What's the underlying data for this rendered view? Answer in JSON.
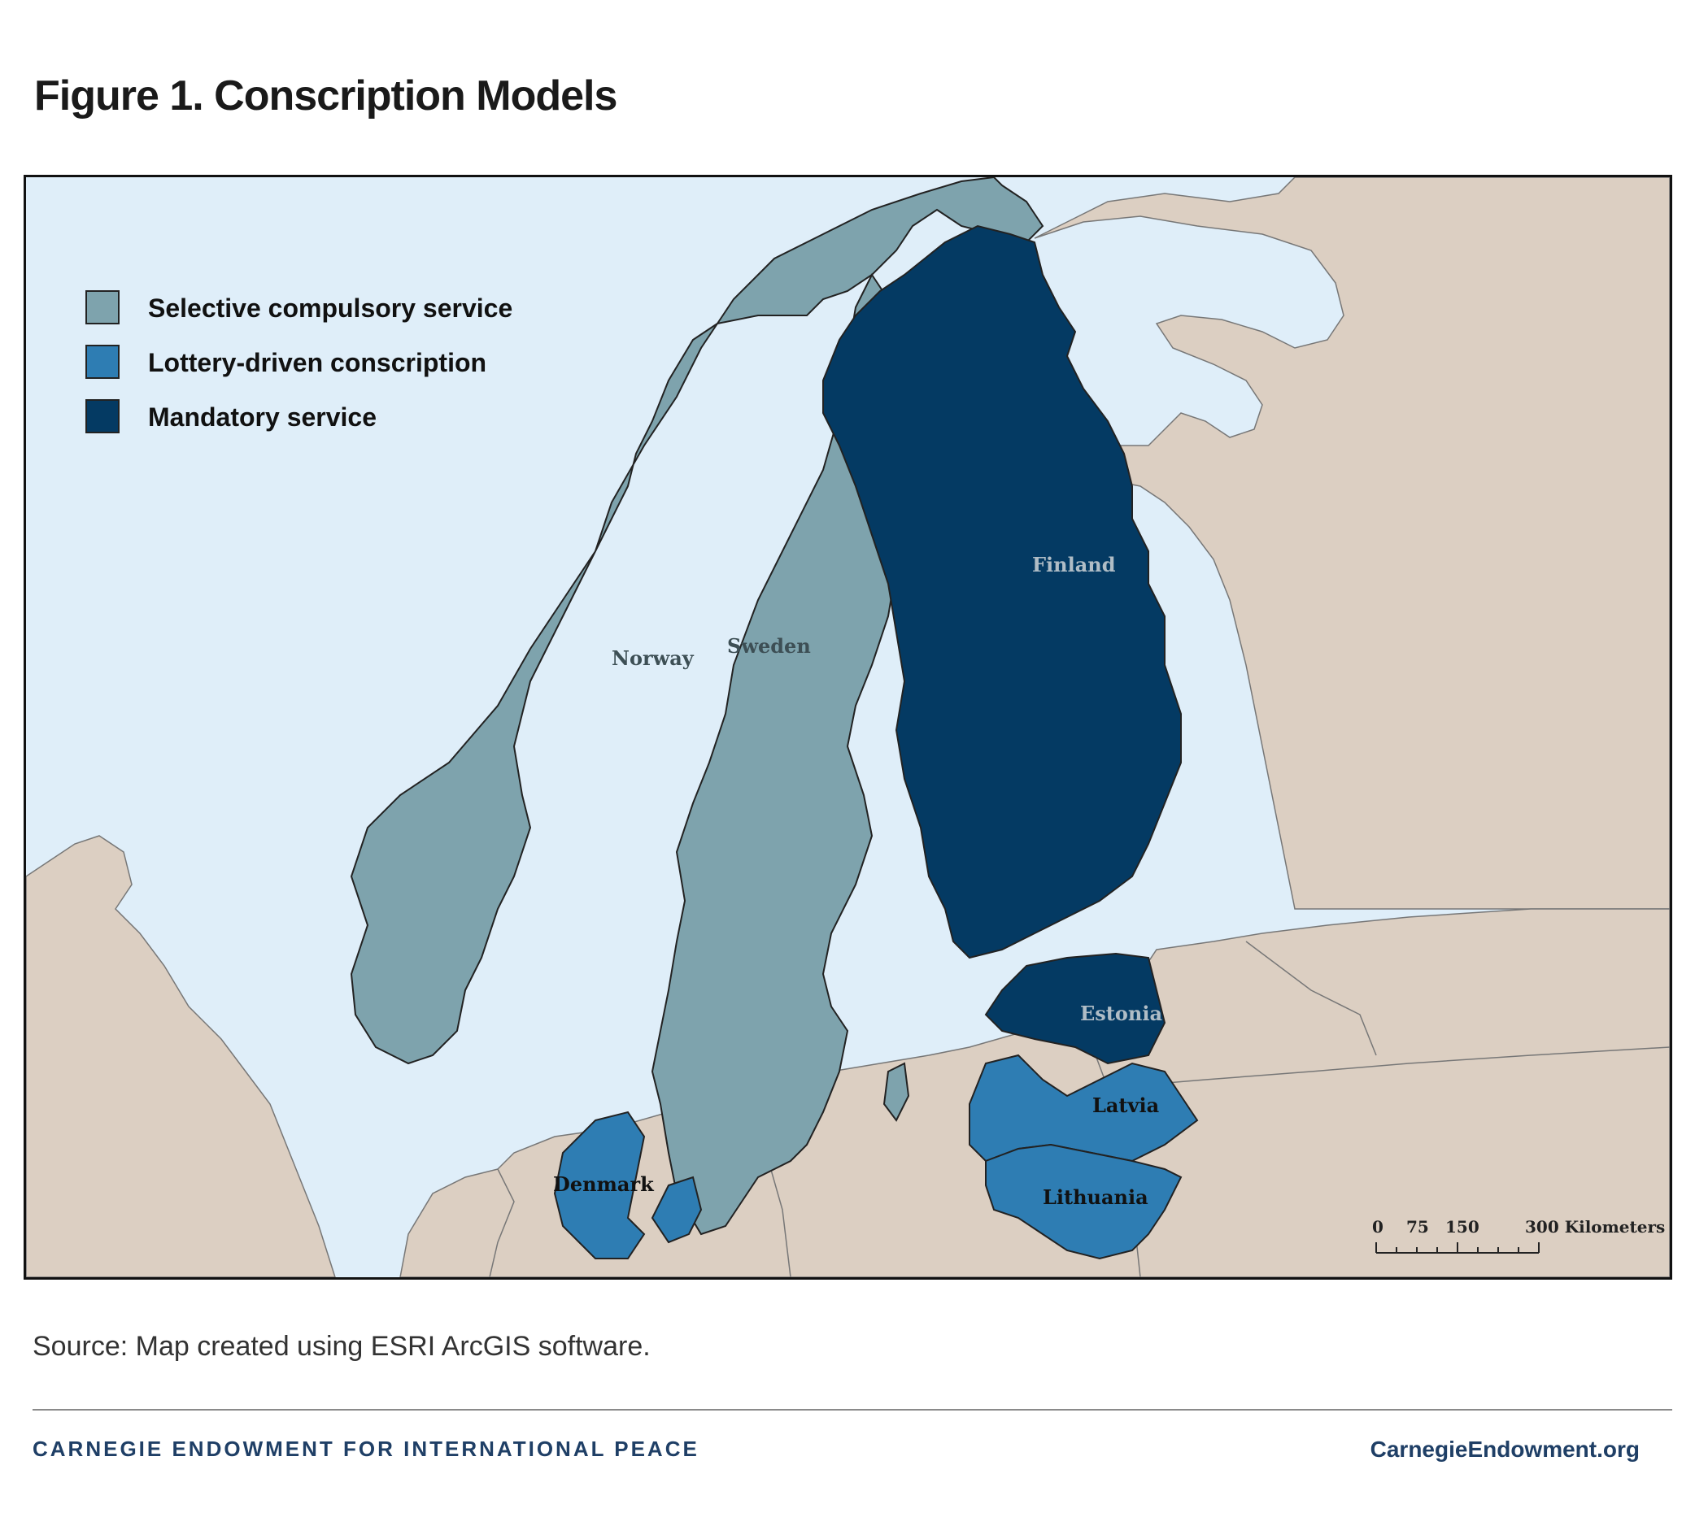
{
  "title": "Figure 1. Conscription Models",
  "legend": {
    "items": [
      {
        "label": "Selective compulsory service",
        "color": "#7ea3ad"
      },
      {
        "label": "Lottery-driven conscription",
        "color": "#2e7db3"
      },
      {
        "label": "Mandatory service",
        "color": "#043a63"
      }
    ]
  },
  "map": {
    "colors": {
      "sea": "#dfeef9",
      "land": "#dccfc2"
    },
    "countries": {
      "norway": {
        "label": "Norway",
        "category": "Selective compulsory service"
      },
      "sweden": {
        "label": "Sweden",
        "category": "Selective compulsory service"
      },
      "finland": {
        "label": "Finland",
        "category": "Mandatory service"
      },
      "estonia": {
        "label": "Estonia",
        "category": "Mandatory service"
      },
      "latvia": {
        "label": "Latvia",
        "category": "Lottery-driven conscription"
      },
      "lithuania": {
        "label": "Lithuania",
        "category": "Lottery-driven conscription"
      },
      "denmark": {
        "label": "Denmark",
        "category": "Lottery-driven conscription"
      }
    },
    "scale_bar": {
      "ticks": [
        "0",
        "75",
        "150",
        "300 Kilometers"
      ]
    }
  },
  "source": "Source: Map created using ESRI ArcGIS software.",
  "footer": {
    "organization": "CARNEGIE ENDOWMENT FOR INTERNATIONAL PEACE",
    "website": "CarnegieEndowment.org"
  }
}
